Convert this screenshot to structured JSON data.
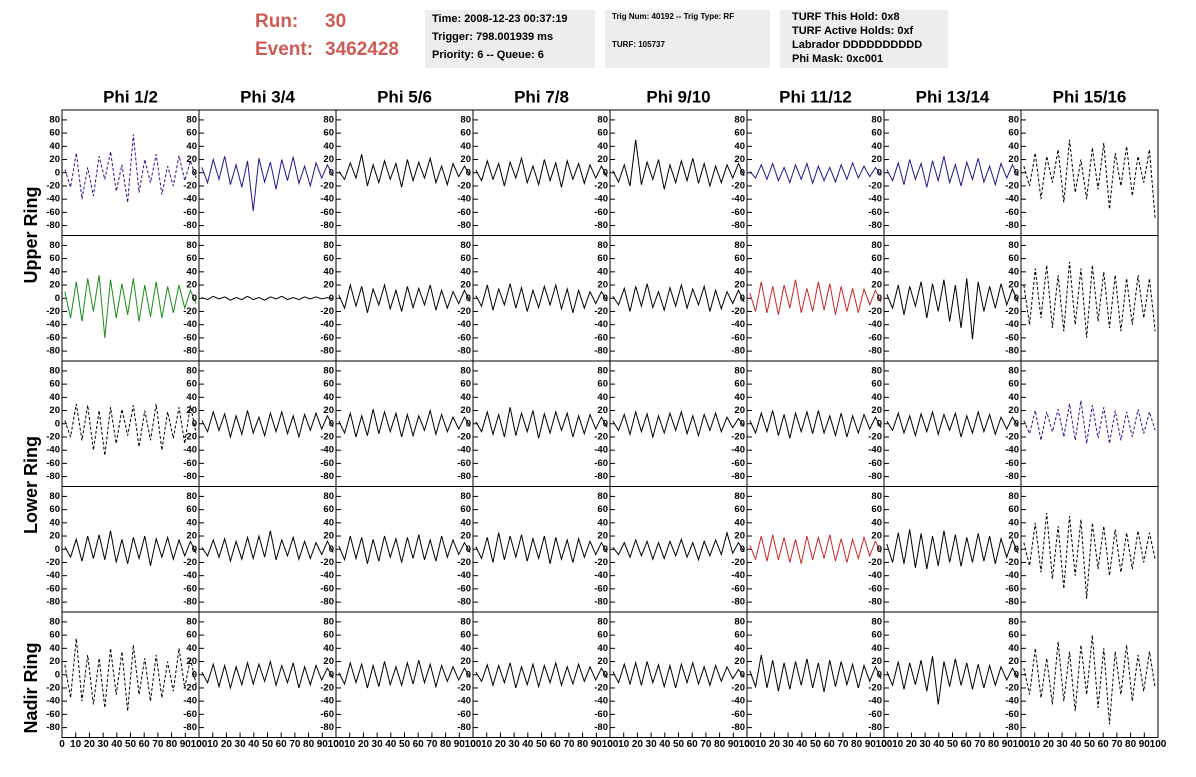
{
  "header": {
    "run_label": "Run:",
    "run": "30",
    "event_label": "Event:",
    "event": "3462428",
    "box1": [
      "Time: 2008-12-23 00:37:19",
      "Trigger: 798.001939 ms",
      "Priority: 6 -- Queue: 6"
    ],
    "box2": [
      "Trig Num: 40192 -- Trig Type: RF",
      "TURF: 105737"
    ],
    "box3": [
      "TURF This Hold: 0x8",
      "TURF Active Holds: 0xf",
      "Labrador DDDDDDDDDD",
      "Phi Mask: 0xc001"
    ]
  },
  "columns": [
    "Phi 1/2",
    "Phi 3/4",
    "Phi 5/6",
    "Phi 7/8",
    "Phi 9/10",
    "Phi 11/12",
    "Phi 13/14",
    "Phi 15/16"
  ],
  "rows": [
    "Upper Ring",
    "Lower Ring",
    "Nadir Ring"
  ],
  "axes": {
    "xlim": [
      0,
      100
    ],
    "xticks": [
      0,
      10,
      20,
      30,
      40,
      50,
      60,
      70,
      80,
      90,
      100
    ],
    "ylim": [
      -95,
      95
    ],
    "yticks": [
      80,
      60,
      40,
      20,
      0,
      -20,
      -40,
      -60,
      -80
    ]
  },
  "panels": [
    {
      "color": "#1a1a8c",
      "dashed": true,
      "values": [
        5,
        -22,
        30,
        -40,
        8,
        -35,
        25,
        -10,
        32,
        -28,
        12,
        -45,
        58,
        -30,
        20,
        -15,
        28,
        -33,
        10,
        -20,
        26,
        -12,
        18,
        -8
      ]
    },
    {
      "color": "#1a1a8c",
      "dashed": false,
      "values": [
        8,
        -15,
        20,
        -10,
        25,
        -18,
        12,
        -22,
        18,
        -58,
        22,
        -14,
        16,
        -25,
        20,
        -12,
        24,
        -16,
        10,
        -20,
        15,
        -8,
        12,
        -5
      ]
    },
    {
      "color": "#000000",
      "dashed": false,
      "values": [
        2,
        -10,
        15,
        -8,
        28,
        -20,
        12,
        -15,
        18,
        -10,
        14,
        -22,
        20,
        -12,
        16,
        -8,
        22,
        -15,
        10,
        -18,
        14,
        -6,
        10,
        -4
      ]
    },
    {
      "color": "#000000",
      "dashed": false,
      "values": [
        4,
        -12,
        18,
        -10,
        14,
        -20,
        16,
        -8,
        22,
        -15,
        10,
        -18,
        20,
        -12,
        15,
        -22,
        18,
        -10,
        14,
        -16,
        12,
        -8,
        10,
        -6
      ]
    },
    {
      "color": "#000000",
      "dashed": false,
      "values": [
        3,
        -14,
        12,
        -20,
        50,
        -18,
        16,
        -10,
        20,
        -25,
        12,
        -15,
        18,
        -12,
        22,
        -16,
        14,
        -20,
        10,
        -15,
        12,
        -8,
        14,
        -5
      ]
    },
    {
      "color": "#1a1a8c",
      "dashed": false,
      "values": [
        2,
        -8,
        12,
        -10,
        14,
        -12,
        8,
        -15,
        12,
        -10,
        14,
        -16,
        10,
        -12,
        8,
        -14,
        12,
        -10,
        15,
        -8,
        10,
        -6,
        8,
        -4
      ]
    },
    {
      "color": "#1a1a8c",
      "dashed": false,
      "values": [
        5,
        -12,
        15,
        -18,
        20,
        -10,
        14,
        -22,
        18,
        -12,
        25,
        -15,
        12,
        -20,
        16,
        -10,
        22,
        -14,
        10,
        -18,
        14,
        -8,
        12,
        -5
      ]
    },
    {
      "color": "#000000",
      "dashed": true,
      "values": [
        10,
        -20,
        30,
        -40,
        25,
        -15,
        35,
        -45,
        50,
        -30,
        20,
        -40,
        38,
        -25,
        45,
        -55,
        30,
        -20,
        40,
        -35,
        25,
        -15,
        35,
        -70
      ]
    },
    {
      "color": "#1a8c1a",
      "dashed": false,
      "values": [
        10,
        -30,
        25,
        -35,
        30,
        -20,
        35,
        -60,
        28,
        -30,
        22,
        -25,
        30,
        -35,
        20,
        -28,
        25,
        -30,
        18,
        -22,
        20,
        -15,
        12,
        -8
      ]
    },
    {
      "color": "#000000",
      "dashed": false,
      "values": [
        1,
        -2,
        3,
        -1,
        2,
        -3,
        1,
        -2,
        3,
        -2,
        1,
        -3,
        2,
        -1,
        3,
        -2,
        1,
        -2,
        2,
        -1,
        2,
        -1,
        1,
        -1
      ]
    },
    {
      "color": "#000000",
      "dashed": false,
      "values": [
        5,
        -15,
        20,
        -12,
        18,
        -22,
        14,
        -10,
        20,
        -16,
        12,
        -20,
        18,
        -14,
        15,
        -10,
        20,
        -18,
        12,
        -15,
        10,
        -8,
        12,
        -5
      ]
    },
    {
      "color": "#000000",
      "dashed": false,
      "values": [
        4,
        -12,
        20,
        -18,
        14,
        -10,
        22,
        -15,
        16,
        -20,
        12,
        -14,
        18,
        -10,
        20,
        -16,
        14,
        -22,
        12,
        -15,
        10,
        -8,
        10,
        -4
      ]
    },
    {
      "color": "#000000",
      "dashed": false,
      "values": [
        3,
        -10,
        15,
        -20,
        18,
        -12,
        22,
        -14,
        10,
        -18,
        16,
        -12,
        20,
        -15,
        14,
        -10,
        18,
        -20,
        12,
        -16,
        10,
        -8,
        12,
        -6
      ]
    },
    {
      "color": "#c82828",
      "dashed": false,
      "values": [
        8,
        -20,
        25,
        -22,
        18,
        -25,
        20,
        -15,
        28,
        -22,
        15,
        -20,
        25,
        -18,
        22,
        -25,
        18,
        -20,
        15,
        -22,
        14,
        -10,
        12,
        -6
      ]
    },
    {
      "color": "#000000",
      "dashed": false,
      "values": [
        6,
        -15,
        20,
        -25,
        18,
        -12,
        25,
        -30,
        22,
        -20,
        28,
        -35,
        20,
        -45,
        30,
        -62,
        25,
        -20,
        18,
        -15,
        22,
        -10,
        14,
        -6
      ]
    },
    {
      "color": "#000000",
      "dashed": true,
      "values": [
        20,
        -40,
        45,
        -30,
        50,
        -45,
        35,
        -50,
        55,
        -40,
        45,
        -60,
        50,
        -35,
        40,
        -45,
        35,
        -50,
        30,
        -40,
        35,
        -30,
        30,
        -50
      ]
    },
    {
      "color": "#000000",
      "dashed": true,
      "values": [
        5,
        -20,
        30,
        -25,
        28,
        -40,
        20,
        -48,
        25,
        -30,
        22,
        -18,
        28,
        -35,
        20,
        -25,
        30,
        -40,
        18,
        -22,
        25,
        -30,
        28,
        -15
      ]
    },
    {
      "color": "#000000",
      "dashed": false,
      "values": [
        5,
        -12,
        18,
        -10,
        15,
        -20,
        12,
        -16,
        20,
        -14,
        10,
        -18,
        16,
        -12,
        18,
        -15,
        12,
        -20,
        14,
        -10,
        16,
        -8,
        12,
        -5
      ]
    },
    {
      "color": "#000000",
      "dashed": false,
      "values": [
        4,
        -14,
        16,
        -20,
        12,
        -18,
        22,
        -15,
        18,
        -12,
        16,
        -20,
        14,
        -18,
        12,
        -10,
        20,
        -16,
        14,
        -12,
        10,
        -8,
        10,
        -4
      ]
    },
    {
      "color": "#000000",
      "dashed": false,
      "values": [
        3,
        -12,
        18,
        -16,
        14,
        -20,
        25,
        -18,
        16,
        -12,
        20,
        -22,
        15,
        -14,
        18,
        -10,
        16,
        -20,
        12,
        -15,
        14,
        -8,
        10,
        -5
      ]
    },
    {
      "color": "#000000",
      "dashed": false,
      "values": [
        4,
        -10,
        14,
        -16,
        18,
        -12,
        15,
        -20,
        12,
        -14,
        16,
        -10,
        18,
        -15,
        12,
        -18,
        14,
        -10,
        16,
        -12,
        10,
        -6,
        8,
        -4
      ]
    },
    {
      "color": "#000000",
      "dashed": false,
      "values": [
        5,
        -14,
        16,
        -12,
        20,
        -18,
        14,
        -22,
        16,
        -12,
        18,
        -15,
        20,
        -14,
        12,
        -18,
        16,
        -20,
        12,
        -14,
        14,
        -8,
        10,
        -6
      ]
    },
    {
      "color": "#000000",
      "dashed": false,
      "values": [
        4,
        -10,
        16,
        -14,
        12,
        -18,
        15,
        -12,
        18,
        -16,
        14,
        -10,
        16,
        -20,
        12,
        -14,
        18,
        -12,
        14,
        -16,
        10,
        -8,
        10,
        -4
      ]
    },
    {
      "color": "#1a1a8c",
      "dashed": true,
      "values": [
        5,
        -15,
        20,
        -25,
        18,
        -12,
        22,
        -20,
        30,
        -25,
        35,
        -30,
        28,
        -22,
        25,
        -30,
        20,
        -25,
        18,
        -20,
        22,
        -15,
        18,
        -10
      ]
    },
    {
      "color": "#000000",
      "dashed": false,
      "values": [
        4,
        -12,
        15,
        -18,
        20,
        -14,
        22,
        -16,
        28,
        -20,
        15,
        -22,
        18,
        -14,
        20,
        -25,
        16,
        -12,
        18,
        -15,
        14,
        -10,
        12,
        -6
      ]
    },
    {
      "color": "#000000",
      "dashed": false,
      "values": [
        3,
        -10,
        14,
        -12,
        16,
        -18,
        12,
        -15,
        18,
        -14,
        20,
        -12,
        28,
        -16,
        14,
        -10,
        18,
        -15,
        12,
        -14,
        10,
        -8,
        12,
        -5
      ]
    },
    {
      "color": "#000000",
      "dashed": false,
      "values": [
        5,
        -16,
        20,
        -14,
        18,
        -22,
        15,
        -18,
        20,
        -12,
        16,
        -20,
        18,
        -14,
        22,
        -16,
        14,
        -18,
        20,
        -12,
        14,
        -8,
        10,
        -5
      ]
    },
    {
      "color": "#000000",
      "dashed": false,
      "values": [
        4,
        -14,
        18,
        -20,
        25,
        -16,
        20,
        -12,
        22,
        -18,
        16,
        -14,
        20,
        -22,
        18,
        -15,
        14,
        -20,
        16,
        -12,
        12,
        -8,
        10,
        -5
      ]
    },
    {
      "color": "#000000",
      "dashed": false,
      "values": [
        3,
        -8,
        10,
        -12,
        14,
        -10,
        12,
        -15,
        10,
        -14,
        12,
        -10,
        15,
        -12,
        10,
        -16,
        12,
        -10,
        14,
        -8,
        25,
        -6,
        10,
        -4
      ]
    },
    {
      "color": "#c82828",
      "dashed": false,
      "values": [
        6,
        -15,
        20,
        -18,
        22,
        -16,
        18,
        -20,
        15,
        -22,
        20,
        -16,
        18,
        -14,
        22,
        -18,
        16,
        -20,
        15,
        -14,
        18,
        -10,
        12,
        -5
      ]
    },
    {
      "color": "#000000",
      "dashed": false,
      "values": [
        8,
        -20,
        25,
        -22,
        30,
        -28,
        24,
        -30,
        20,
        -25,
        28,
        -20,
        22,
        -26,
        18,
        -20,
        24,
        -18,
        20,
        -22,
        16,
        -12,
        14,
        -6
      ]
    },
    {
      "color": "#000000",
      "dashed": true,
      "values": [
        10,
        -25,
        40,
        -35,
        55,
        -45,
        35,
        -60,
        50,
        -40,
        45,
        -75,
        40,
        -30,
        35,
        -40,
        30,
        -35,
        25,
        -30,
        28,
        -20,
        25,
        -15
      ]
    },
    {
      "color": "#000000",
      "dashed": true,
      "values": [
        15,
        -35,
        55,
        -40,
        30,
        -45,
        25,
        -50,
        40,
        -30,
        35,
        -55,
        45,
        -30,
        25,
        -40,
        30,
        -35,
        20,
        -25,
        40,
        -20,
        25,
        -15
      ]
    },
    {
      "color": "#000000",
      "dashed": false,
      "values": [
        4,
        -12,
        16,
        -18,
        14,
        -20,
        12,
        -15,
        18,
        -14,
        16,
        -10,
        20,
        -16,
        14,
        -12,
        18,
        -20,
        12,
        -15,
        14,
        -8,
        10,
        -5
      ]
    },
    {
      "color": "#000000",
      "dashed": false,
      "values": [
        3,
        -14,
        18,
        -12,
        16,
        -20,
        14,
        -18,
        20,
        -15,
        12,
        -16,
        18,
        -14,
        22,
        -12,
        16,
        -18,
        14,
        -10,
        12,
        -8,
        10,
        -4
      ]
    },
    {
      "color": "#000000",
      "dashed": false,
      "values": [
        4,
        -10,
        15,
        -16,
        14,
        -12,
        18,
        -20,
        12,
        -15,
        16,
        -18,
        14,
        -12,
        18,
        -16,
        12,
        -14,
        16,
        -10,
        12,
        -8,
        10,
        -5
      ]
    },
    {
      "color": "#000000",
      "dashed": false,
      "values": [
        5,
        -12,
        16,
        -14,
        18,
        -16,
        20,
        -12,
        15,
        -18,
        14,
        -20,
        16,
        -12,
        18,
        -14,
        12,
        -16,
        14,
        -10,
        12,
        -6,
        8,
        -4
      ]
    },
    {
      "color": "#000000",
      "dashed": false,
      "values": [
        6,
        -18,
        30,
        -20,
        22,
        -25,
        18,
        -22,
        20,
        -16,
        24,
        -20,
        18,
        -26,
        22,
        -18,
        20,
        -15,
        16,
        -20,
        14,
        -10,
        12,
        -6
      ]
    },
    {
      "color": "#000000",
      "dashed": false,
      "values": [
        5,
        -16,
        20,
        -22,
        18,
        -15,
        22,
        -25,
        28,
        -45,
        20,
        -18,
        24,
        -16,
        18,
        -22,
        16,
        -20,
        14,
        -16,
        12,
        -8,
        10,
        -5
      ]
    },
    {
      "color": "#000000",
      "dashed": true,
      "values": [
        10,
        -30,
        40,
        -35,
        25,
        -45,
        50,
        -40,
        35,
        -55,
        45,
        -30,
        60,
        -50,
        40,
        -75,
        35,
        -30,
        45,
        -40,
        30,
        -25,
        35,
        -20
      ]
    }
  ]
}
